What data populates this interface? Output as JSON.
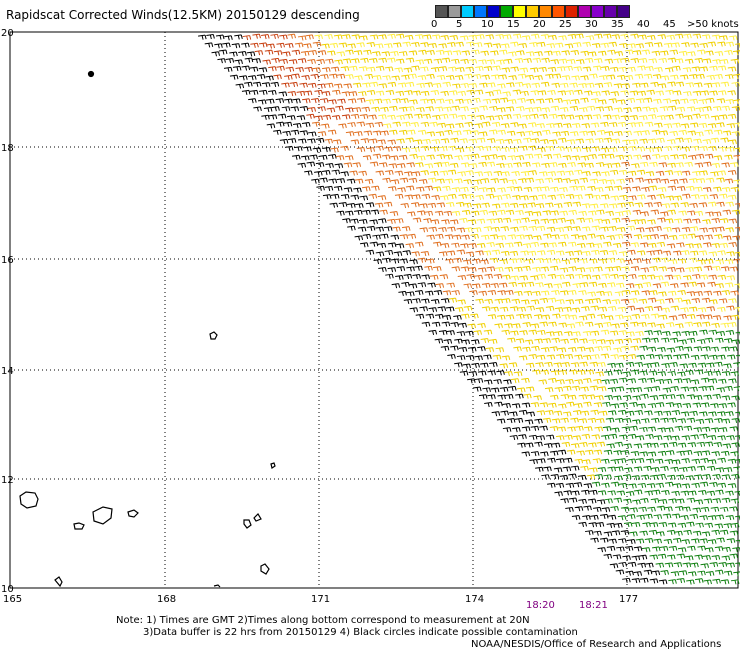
{
  "title": "Rapidscat Corrected Winds(12.5KM) 20150129 descending",
  "legend": {
    "labels": [
      "0",
      "5",
      "10",
      "15",
      "20",
      "25",
      "30",
      "35",
      "40",
      "45",
      ">50 knots"
    ],
    "colors": [
      "#555555",
      "#9a9a9a",
      "#00ccff",
      "#0077ff",
      "#0000cc",
      "#00aa00",
      "#ffff00",
      "#ffcc00",
      "#ff8800",
      "#ff5500",
      "#dd2200",
      "#b000b0",
      "#8800cc",
      "#6600aa",
      "#440088"
    ]
  },
  "axes": {
    "lon_labels": [
      "165",
      "168",
      "171",
      "174",
      "177"
    ],
    "lat_labels": [
      "20",
      "18",
      "16",
      "14",
      "12",
      "10"
    ]
  },
  "time_labels": [
    "18:20",
    "18:21"
  ],
  "notes": {
    "line1": "Note: 1) Times are GMT 2)Times along bottom correspond to measurement at 20N",
    "line2": "3)Data buffer is 22 hrs from 20150129 4) Black circles indicate possible contamination",
    "line3": "NOAA/NESDIS/Office of Research and Applications"
  },
  "wind_colors": {
    "black": "#000000",
    "orange": "#e07020",
    "dark_orange": "#c84010",
    "yellow": "#f0d000",
    "light_yellow": "#ffee40",
    "green": "#108010"
  }
}
